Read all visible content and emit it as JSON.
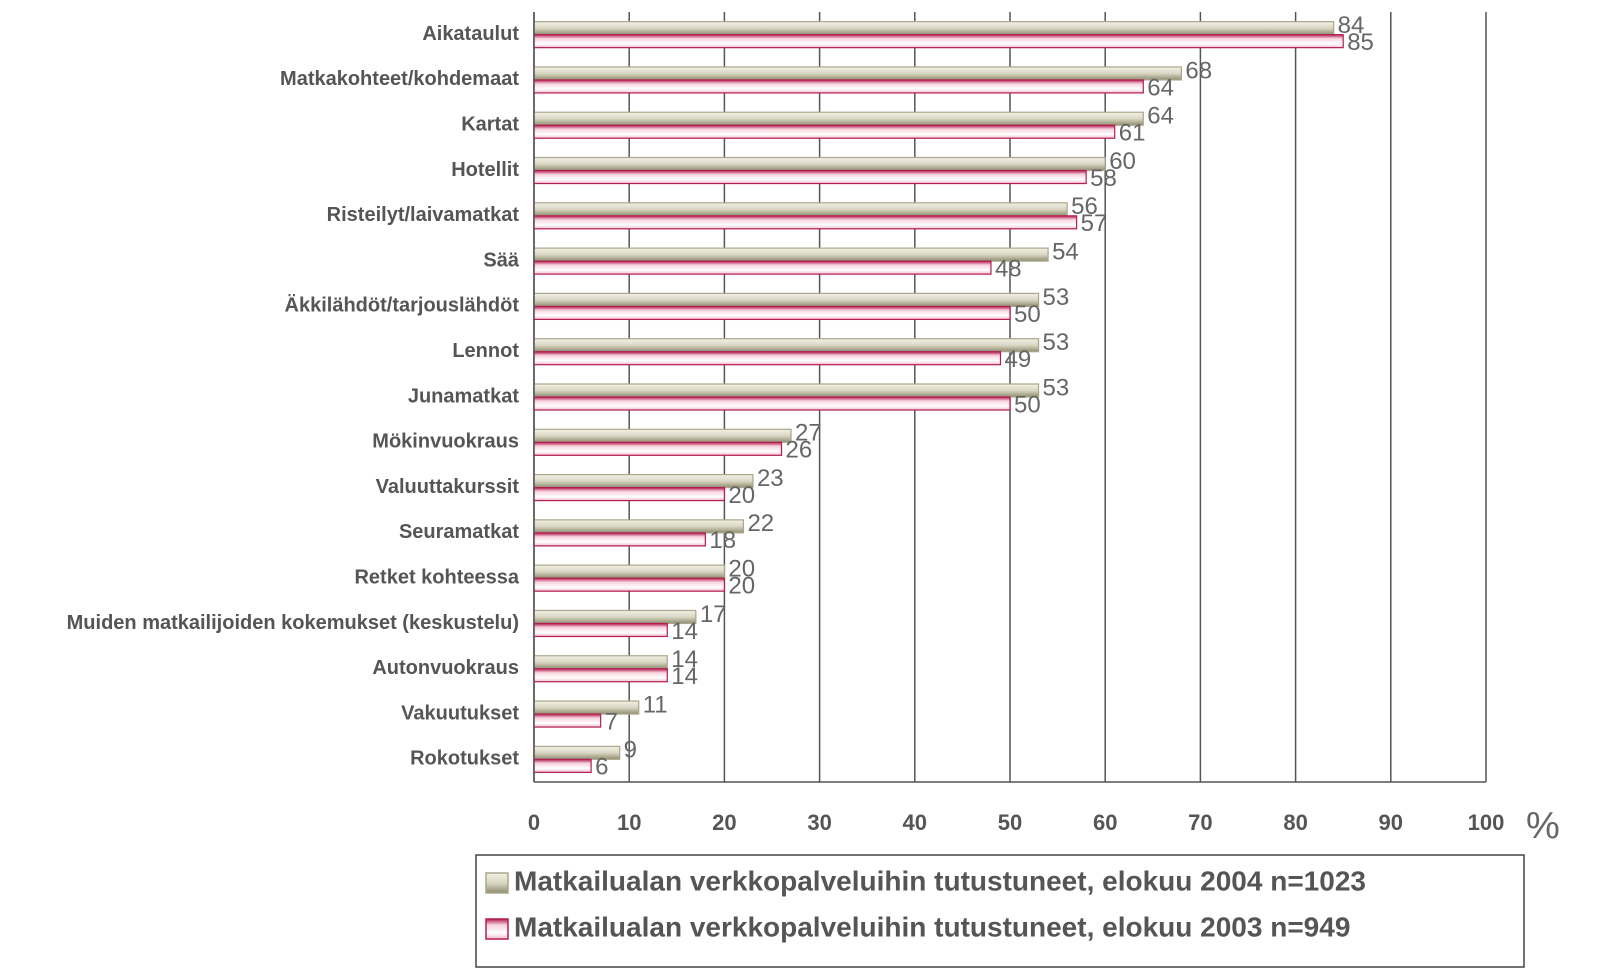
{
  "chart_data": {
    "type": "hbar",
    "categories": [
      "Aikataulut",
      "Matkakohteet/kohdemaat",
      "Kartat",
      "Hotellit",
      "Risteilyt/laivamatkat",
      "Sää",
      "Äkkilähdöt/tarjouslähdöt",
      "Lennot",
      "Junamatkat",
      "Mökinvuokraus",
      "Valuuttakurssit",
      "Seuramatkat",
      "Retket kohteessa",
      "Muiden matkailijoiden kokemukset (keskustelu)",
      "Autonvuokraus",
      "Vakuutukset",
      "Rokotukset"
    ],
    "series": [
      {
        "name": "Matkailualan verkkopalveluihin tutustuneet, elokuu 2004 n=1023",
        "color": "#a9a78a",
        "values": [
          84,
          68,
          64,
          60,
          56,
          54,
          53,
          53,
          53,
          27,
          23,
          22,
          20,
          17,
          14,
          11,
          9
        ]
      },
      {
        "name": "Matkailualan verkkopalveluihin tutustuneet, elokuu 2003 n=949",
        "color": "#b31d52",
        "values": [
          85,
          64,
          61,
          58,
          57,
          48,
          50,
          49,
          50,
          26,
          20,
          18,
          20,
          14,
          14,
          7,
          6
        ]
      }
    ],
    "xlabel": "%",
    "xlim": [
      0,
      100
    ],
    "xticks": [
      0,
      10,
      20,
      30,
      40,
      50,
      60,
      70,
      80,
      90,
      100
    ],
    "grid": true
  }
}
